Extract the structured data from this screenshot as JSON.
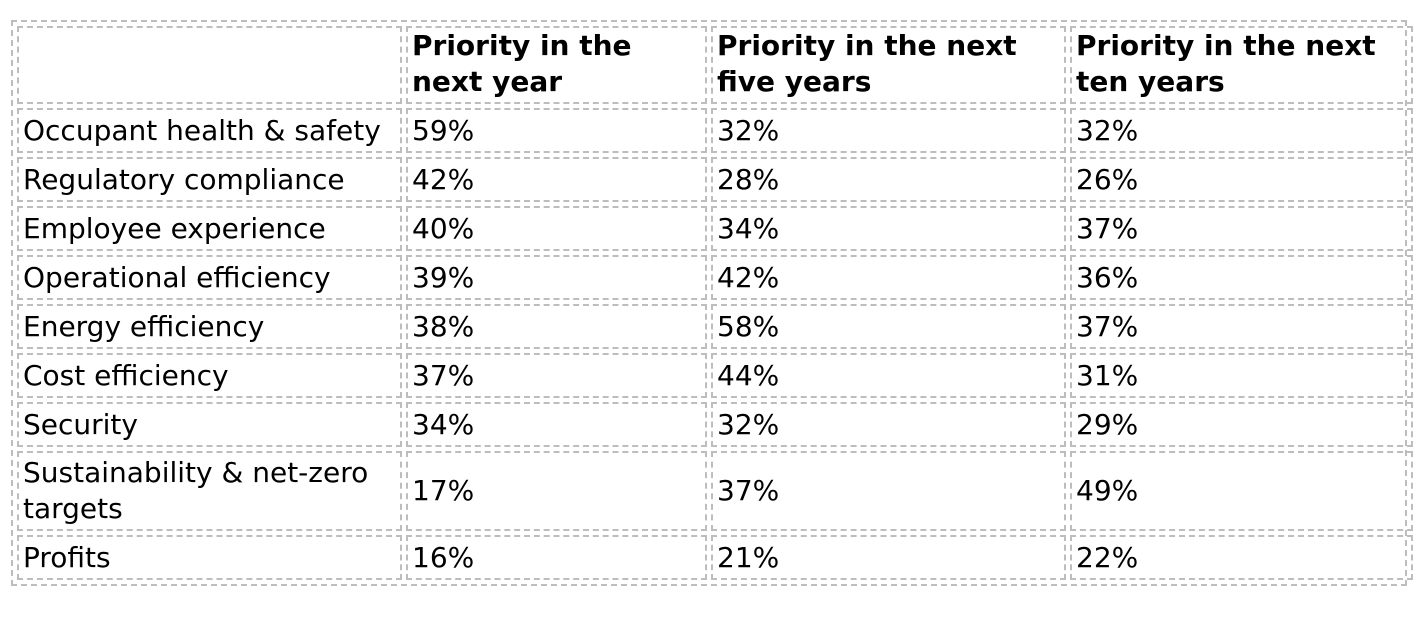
{
  "table": {
    "headers": [
      "",
      "Priority in the next year",
      "Priority in the next five years",
      "Priority in the next ten years"
    ],
    "rows": [
      [
        "Occupant health & safety",
        "59%",
        "32%",
        "32%"
      ],
      [
        "Regulatory compliance",
        "42%",
        "28%",
        "26%"
      ],
      [
        "Employee experience",
        "40%",
        "34%",
        "37%"
      ],
      [
        "Operational efficiency",
        "39%",
        "42%",
        "36%"
      ],
      [
        "Energy efficiency",
        "38%",
        "58%",
        "37%"
      ],
      [
        "Cost efficiency",
        "37%",
        "44%",
        "31%"
      ],
      [
        "Security",
        "34%",
        "32%",
        "29%"
      ],
      [
        "Sustainability & net-zero targets",
        "17%",
        "37%",
        "49%"
      ],
      [
        "Profits",
        "16%",
        "21%",
        "22%"
      ]
    ]
  }
}
